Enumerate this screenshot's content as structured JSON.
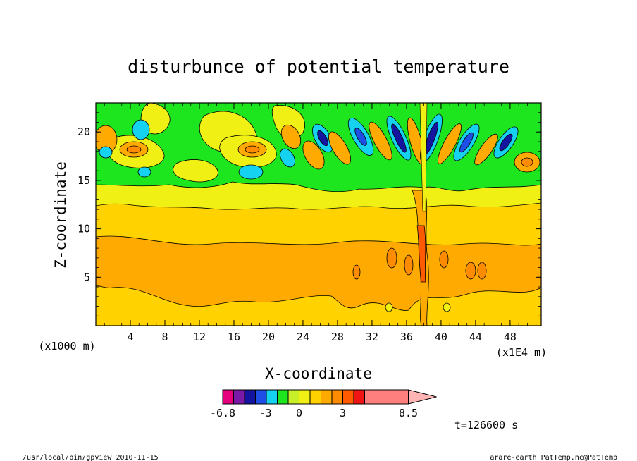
{
  "chart_data": {
    "type": "heatmap",
    "title": "disturbunce of potential temperature",
    "xlabel": "X-coordinate",
    "ylabel": "Z-coordinate",
    "x_unit_left": "(x1000 m)",
    "x_unit_right": "(x1E4 m)",
    "xlim": [
      0,
      51.6
    ],
    "ylim": [
      0,
      23
    ],
    "x_ticks": [
      4,
      8,
      12,
      16,
      20,
      24,
      28,
      32,
      36,
      40,
      44,
      48
    ],
    "y_ticks": [
      5,
      10,
      15,
      20
    ],
    "x_tick_labels": [
      "4",
      "8",
      "12",
      "16",
      "20",
      "24",
      "28",
      "32",
      "36",
      "40",
      "44",
      "48"
    ],
    "y_tick_labels": [
      "5",
      "10",
      "15",
      "20"
    ],
    "colorbar": {
      "min": -6.8,
      "max": 8.5,
      "labels": [
        "-6.8",
        "-3",
        "0",
        "3",
        "8.5"
      ],
      "label_values": [
        -6.8,
        -3,
        0,
        3,
        8.5
      ],
      "colors": [
        "#e6007e",
        "#7a18a8",
        "#1414a0",
        "#1e4ee6",
        "#14d2f0",
        "#1ee61e",
        "#c8f028",
        "#f0f014",
        "#ffd200",
        "#ffaa00",
        "#ff8c00",
        "#ff5a00",
        "#f01414",
        "#ff7f7f",
        "#ffb4b4"
      ]
    },
    "time_label": "t=126600 s"
  },
  "footer": {
    "left": "/usr/local/bin/gpview  2010-11-15",
    "right": "arare-earth_PatTemp.nc@PatTemp"
  }
}
